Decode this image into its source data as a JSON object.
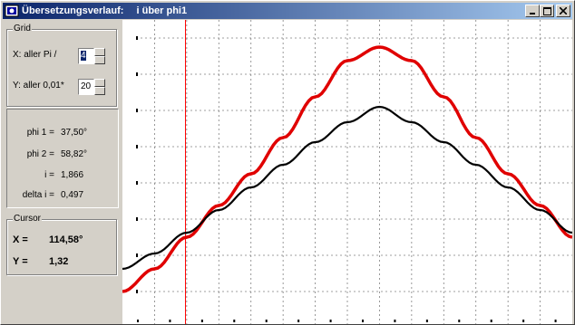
{
  "window": {
    "title": "Übersetzungsverlauf:",
    "subtitle": "i über phi1",
    "buttons": {
      "minimize": "_",
      "maximize": "□",
      "close": "×"
    }
  },
  "grid": {
    "label": "Grid",
    "x_label": "X: aller  Pi /",
    "x_value": "4",
    "y_label": "Y: aller 0,01*",
    "y_value": "20"
  },
  "values": {
    "phi1_label": "phi 1 =",
    "phi1_value": "37,50°",
    "phi2_label": "phi 2 =",
    "phi2_value": "58,82°",
    "i_label": "i =",
    "i_value": "1,866",
    "delta_label": "delta i =",
    "delta_value": "0,497"
  },
  "cursor": {
    "label": "Cursor",
    "x_label": "X =",
    "x_value": "114,58°",
    "y_label": "Y =",
    "y_value": "1,32"
  },
  "colors": {
    "red_curve": "#e00000",
    "black_curve": "#000000",
    "cursor_line": "#ff0000",
    "grid": "#808080"
  },
  "chart_data": {
    "type": "line",
    "x_grid_step": "Pi/4",
    "y_grid_step": "0,01*20",
    "cursor_x": 37.5,
    "x": [
      0,
      45,
      90,
      135,
      180,
      225,
      270,
      315,
      360,
      405,
      450,
      495,
      540,
      585,
      630
    ],
    "series": [
      {
        "values": [
          0.45,
          0.62,
          0.85,
          1.1,
          1.35,
          1.6,
          1.85,
          2.07,
          2.24,
          2.07,
          1.85,
          1.6,
          1.35,
          1.1,
          0.85
        ]
      },
      {
        "values": [
          0.2,
          0.45,
          0.8,
          1.15,
          1.5,
          1.9,
          2.35,
          2.75,
          2.9,
          2.75,
          2.35,
          1.9,
          1.5,
          1.15,
          0.8
        ]
      }
    ]
  }
}
